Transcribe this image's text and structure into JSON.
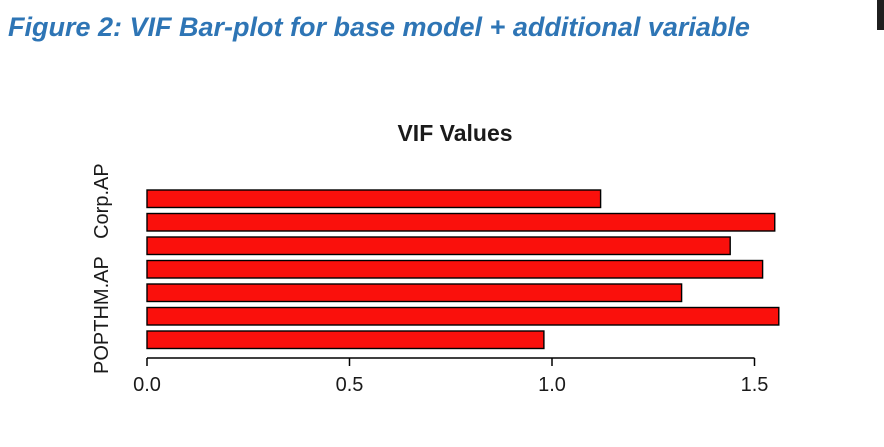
{
  "figure": {
    "caption": "Figure 2: VIF Bar-plot for base model + additional variable",
    "caption_color": "#2E75B5"
  },
  "chart_data": {
    "type": "bar",
    "orientation": "horizontal",
    "title": "VIF Values",
    "values_top_to_bottom": [
      1.12,
      1.55,
      1.44,
      1.52,
      1.32,
      1.56,
      0.98
    ],
    "x_ticks": [
      "0.0",
      "0.5",
      "1.0",
      "1.5"
    ],
    "xlim": [
      0,
      1.6
    ],
    "grid": false,
    "legend": "none",
    "bar_color": "#FA100C",
    "bar_border_color": "#000000",
    "axis_color": "#000000",
    "text_color": "#1a1a1a",
    "y_axis_labels": [
      {
        "label": "Corp.AP",
        "bar_index": 0.1
      },
      {
        "label": "POPTHM.AP",
        "bar_index": 4.95
      }
    ]
  }
}
